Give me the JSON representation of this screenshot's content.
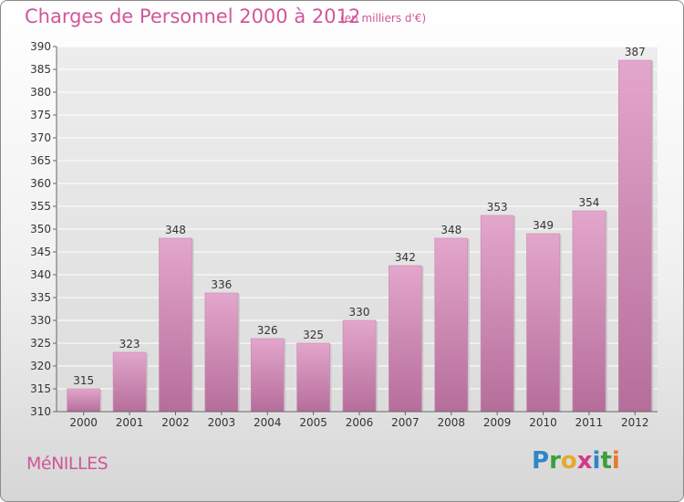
{
  "title": "Charges de Personnel 2000 à 2012",
  "subtitle": "(en milliers d'€)",
  "town": "MéNILLES",
  "logo": {
    "letters": [
      "P",
      "r",
      "o",
      "x",
      "i",
      "t",
      "i"
    ],
    "colors": [
      "#2e86c8",
      "#3aa03a",
      "#e8a92a",
      "#d23a8a",
      "#2e86c8",
      "#3aa03a",
      "#e8792a"
    ]
  },
  "colors": {
    "accent": "#d1569a",
    "bar_top": "#e3a6cc",
    "bar_bottom": "#b56e9a"
  },
  "chart_data": {
    "type": "bar",
    "title": "Charges de Personnel 2000 à 2012",
    "subtitle": "(en milliers d'€)",
    "categories": [
      "2000",
      "2001",
      "2002",
      "2003",
      "2004",
      "2005",
      "2006",
      "2007",
      "2008",
      "2009",
      "2010",
      "2011",
      "2012"
    ],
    "values": [
      315,
      323,
      348,
      336,
      326,
      325,
      330,
      342,
      348,
      353,
      349,
      354,
      387
    ],
    "ylim": [
      310,
      390
    ],
    "yticks": [
      310,
      315,
      320,
      325,
      330,
      335,
      340,
      345,
      350,
      355,
      360,
      365,
      370,
      375,
      380,
      385,
      390
    ],
    "grid": true,
    "data_labels": true
  }
}
